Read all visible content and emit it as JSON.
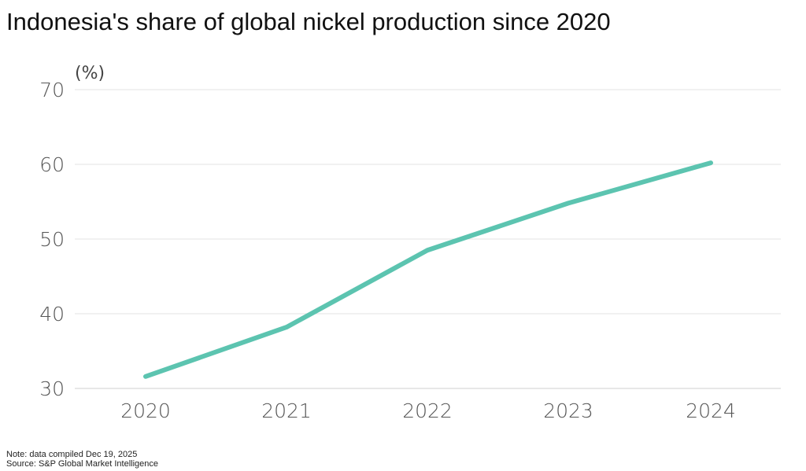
{
  "title": "Indonesia's share of global nickel production since 2020",
  "note": "Note: data compiled Dec 19, 2025",
  "source": "Source: S&P Global Market Intelligence",
  "chart_data": {
    "type": "line",
    "title": "Indonesia's share of global nickel production since 2020",
    "ylabel": "(%)",
    "xlabel": "",
    "categories": [
      "2020",
      "2021",
      "2022",
      "2023",
      "2024"
    ],
    "values": [
      31.6,
      38.2,
      48.5,
      54.8,
      60.2
    ],
    "ylim": [
      30,
      70
    ],
    "yticks": [
      30,
      40,
      50,
      60,
      70
    ],
    "grid": true,
    "line_color": "#5cc4b0"
  }
}
